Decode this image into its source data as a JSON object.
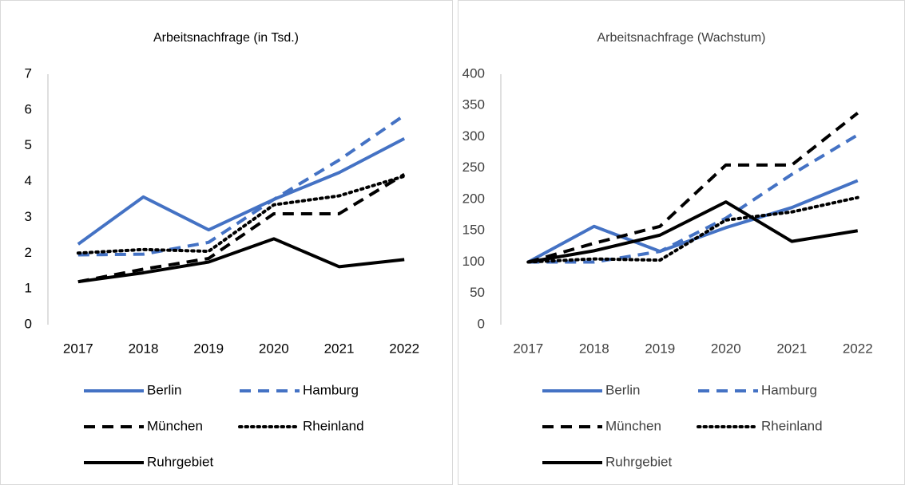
{
  "chart_data": [
    {
      "type": "line",
      "title": "Arbeitsnachfrage (in Tsd.)",
      "categories": [
        "2017",
        "2018",
        "2019",
        "2020",
        "2021",
        "2022"
      ],
      "ylim": [
        0,
        7
      ],
      "yticks": [
        0,
        1,
        2,
        3,
        4,
        5,
        6,
        7
      ],
      "grid": false,
      "series": [
        {
          "name": "Berlin",
          "color": "#4472c4",
          "dash": "solid",
          "values": [
            2.25,
            3.57,
            2.65,
            3.5,
            4.25,
            5.2
          ]
        },
        {
          "name": "Hamburg",
          "color": "#4472c4",
          "dash": "dash",
          "values": [
            1.95,
            1.97,
            2.3,
            3.5,
            4.6,
            5.85
          ]
        },
        {
          "name": "München",
          "color": "#000000",
          "dash": "dash",
          "values": [
            1.2,
            1.55,
            1.85,
            3.1,
            3.1,
            4.2
          ]
        },
        {
          "name": "Rheinland",
          "color": "#000000",
          "dash": "dot",
          "values": [
            2.0,
            2.1,
            2.05,
            3.35,
            3.6,
            4.15
          ]
        },
        {
          "name": "Ruhrgebiet",
          "color": "#000000",
          "dash": "solid",
          "values": [
            1.2,
            1.45,
            1.75,
            2.4,
            1.62,
            1.82
          ]
        }
      ]
    },
    {
      "type": "line",
      "title": "Arbeitsnachfrage (Wachstum)",
      "categories": [
        "2017",
        "2018",
        "2019",
        "2020",
        "2021",
        "2022"
      ],
      "ylim": [
        0,
        400
      ],
      "yticks": [
        0,
        50,
        100,
        150,
        200,
        250,
        300,
        350,
        400
      ],
      "grid": false,
      "series": [
        {
          "name": "Berlin",
          "color": "#4472c4",
          "dash": "solid",
          "values": [
            100,
            157,
            117,
            155,
            187,
            230
          ]
        },
        {
          "name": "Hamburg",
          "color": "#4472c4",
          "dash": "dash",
          "values": [
            100,
            100,
            117,
            170,
            240,
            303
          ]
        },
        {
          "name": "München",
          "color": "#000000",
          "dash": "dash",
          "values": [
            100,
            130,
            157,
            255,
            255,
            338
          ]
        },
        {
          "name": "Rheinland",
          "color": "#000000",
          "dash": "dot",
          "values": [
            100,
            105,
            103,
            167,
            180,
            203
          ]
        },
        {
          "name": "Ruhrgebiet",
          "color": "#000000",
          "dash": "solid",
          "values": [
            100,
            118,
            143,
            196,
            133,
            150
          ]
        }
      ]
    }
  ]
}
